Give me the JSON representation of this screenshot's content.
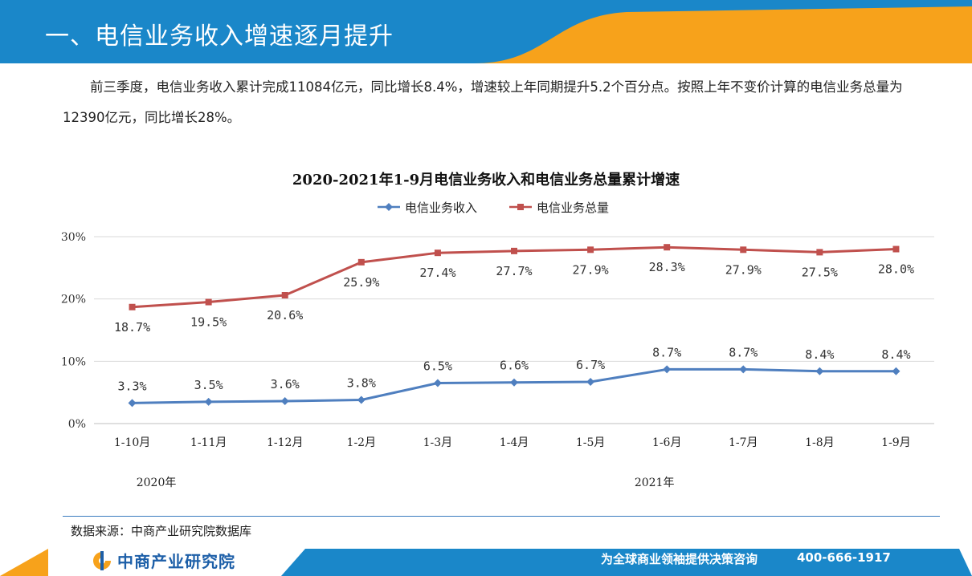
{
  "header": {
    "title": "一、电信业务收入增速逐月提升"
  },
  "intro": "前三季度，电信业务收入累计完成11084亿元，同比增长8.4%，增速较上年同期提升5.2个百分点。按照上年不变价计算的电信业务总量为12390亿元，同比增长28%。",
  "chart_data": {
    "type": "line",
    "title": "2020-2021年1-9月电信业务收入和电信业务总量累计增速",
    "categories": [
      "1-10月",
      "1-11月",
      "1-12月",
      "1-2月",
      "1-3月",
      "1-4月",
      "1-5月",
      "1-6月",
      "1-7月",
      "1-8月",
      "1-9月"
    ],
    "category_groups": [
      {
        "label": "2020年",
        "from": 0,
        "to": 2
      },
      {
        "label": "2021年",
        "from": 3,
        "to": 10
      }
    ],
    "y_ticks": [
      "0%",
      "10%",
      "20%",
      "30%"
    ],
    "ylim": [
      0,
      30
    ],
    "series": [
      {
        "name": "电信业务收入",
        "color": "#4f7fbf",
        "marker": "diamond",
        "values": [
          3.3,
          3.5,
          3.6,
          3.8,
          6.5,
          6.6,
          6.7,
          8.7,
          8.7,
          8.4,
          8.4
        ],
        "labels": [
          "3.3%",
          "3.5%",
          "3.6%",
          "3.8%",
          "6.5%",
          "6.6%",
          "6.7%",
          "8.7%",
          "8.7%",
          "8.4%",
          "8.4%"
        ]
      },
      {
        "name": "电信业务总量",
        "color": "#c0504d",
        "marker": "square",
        "values": [
          18.7,
          19.5,
          20.6,
          25.9,
          27.4,
          27.7,
          27.9,
          28.3,
          27.9,
          27.5,
          28.0
        ],
        "labels": [
          "18.7%",
          "19.5%",
          "20.6%",
          "25.9%",
          "27.4%",
          "27.7%",
          "27.9%",
          "28.3%",
          "27.9%",
          "27.5%",
          "28.0%"
        ]
      }
    ],
    "legend_position": "top",
    "grid": "horizontal"
  },
  "source": "数据来源：中商产业研究院数据库",
  "footer": {
    "logo": "中商产业研究院",
    "slogan": "为全球商业领袖提供决策咨询",
    "phone": "400-666-1917"
  },
  "colors": {
    "brand_blue": "#1a87c9",
    "accent_orange": "#f7a21b"
  }
}
